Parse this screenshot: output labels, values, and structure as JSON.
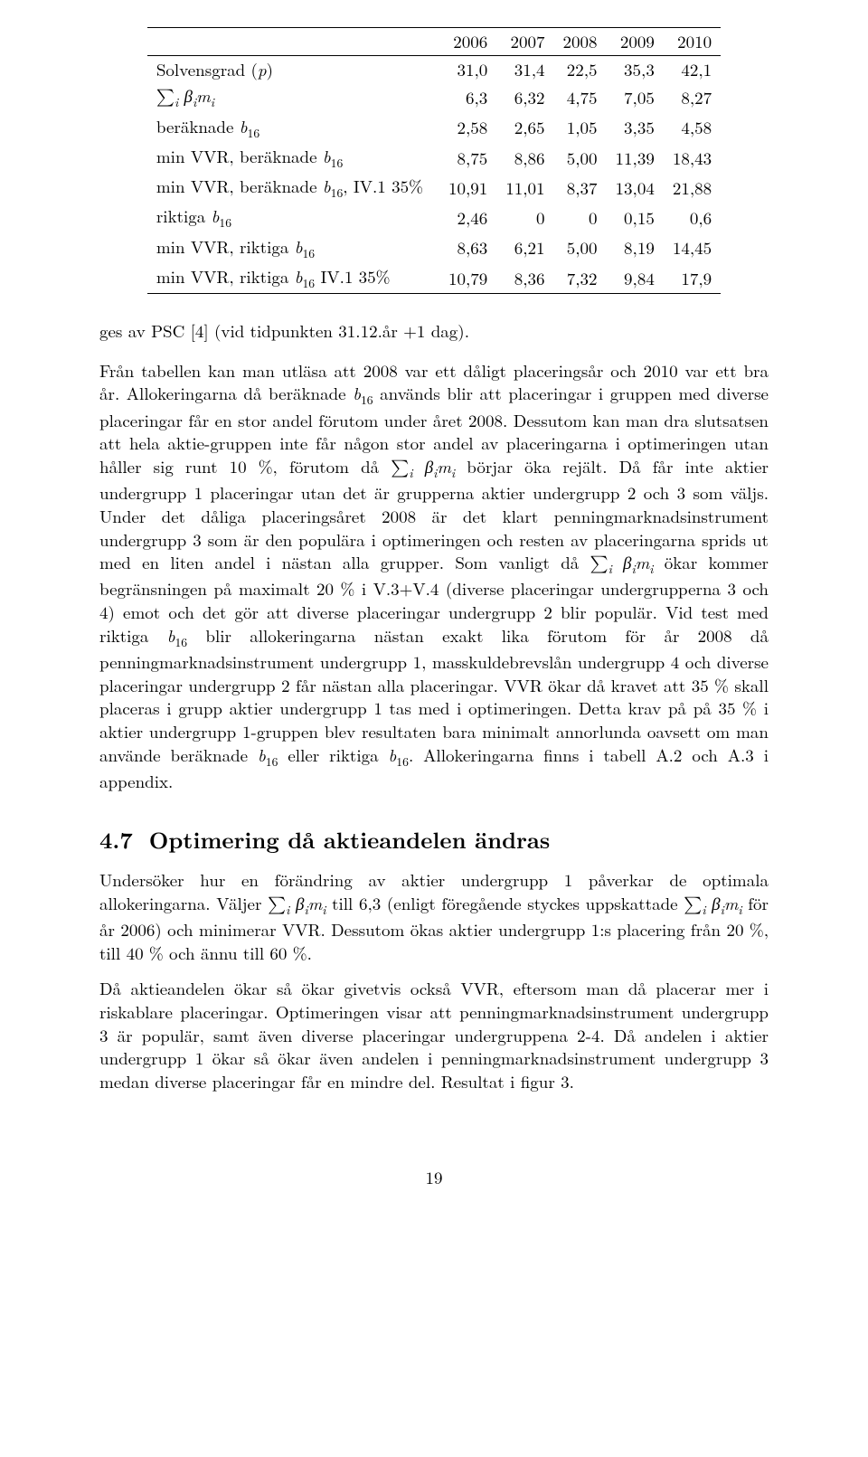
{
  "table": {
    "headers": [
      "",
      "2006",
      "2007",
      "2008",
      "2009",
      "2010"
    ],
    "rows": [
      {
        "label": "Solvensgrad (p)",
        "cells": [
          "31,0",
          "31,4",
          "22,5",
          "35,3",
          "42,1"
        ]
      },
      {
        "label": "∑ᵢ βᵢmᵢ",
        "cells": [
          "6,3",
          "6,32",
          "4,75",
          "7,05",
          "8,27"
        ]
      },
      {
        "label": "beräknade b₁₆",
        "cells": [
          "2,58",
          "2,65",
          "1,05",
          "3,35",
          "4,58"
        ]
      },
      {
        "label": "min VVR, beräknade b₁₆",
        "cells": [
          "8,75",
          "8,86",
          "5,00",
          "11,39",
          "18,43"
        ]
      },
      {
        "label": "min VVR, beräknade b₁₆, IV.1 35%",
        "cells": [
          "10,91",
          "11,01",
          "8,37",
          "13,04",
          "21,88"
        ]
      },
      {
        "label": "riktiga b₁₆",
        "cells": [
          "2,46",
          "0",
          "0",
          "0,15",
          "0,6"
        ]
      },
      {
        "label": "min VVR, riktiga b₁₆",
        "cells": [
          "8,63",
          "6,21",
          "5,00",
          "8,19",
          "14,45"
        ]
      },
      {
        "label": "min VVR, riktiga b₁₆ IV.1 35%",
        "cells": [
          "10,79",
          "8,36",
          "7,32",
          "9,84",
          "17,9"
        ]
      }
    ]
  },
  "para_ges": "ges av PSC [4] (vid tidpunkten 31.12.år +1 dag).",
  "para_main": "Från tabellen kan man utläsa att 2008 var ett dåligt placeringsår och 2010 var ett bra år. Allokeringarna då beräknade b₁₆ används blir att placeringar i gruppen med diverse placeringar får en stor andel förutom under året 2008. Dessutom kan man dra slutsatsen att hela aktie-gruppen inte får någon stor andel av placeringarna i optimeringen utan håller sig runt 10 %, förutom då ∑ᵢ βᵢmᵢ börjar öka rejält. Då får inte aktier undergrupp 1 placeringar utan det är grupperna aktier undergrupp 2 och 3 som väljs. Under det dåliga placeringsåret 2008 är det klart penningmarknadsinstrument undergrupp 3 som är den populära i optimeringen och resten av placeringarna sprids ut med en liten andel i nästan alla grupper. Som vanligt då ∑ᵢ βᵢmᵢ ökar kommer begränsningen på maximalt 20 % i V.3+V.4 (diverse placeringar undergrupperna 3 och 4) emot och det gör att diverse placeringar undergrupp 2 blir populär. Vid test med riktiga b₁₆ blir allokeringarna nästan exakt lika förutom för år 2008 då penningmarknadsinstrument undergrupp 1, masskuldebrevslån undergrupp 4 och diverse placeringar undergrupp 2 får nästan alla placeringar. VVR ökar då kravet att 35 % skall placeras i grupp aktier undergrupp 1 tas med i optimeringen. Detta krav på på 35 % i aktier undergrupp 1-gruppen blev resultaten bara minimalt annorlunda oavsett om man använde beräknade b₁₆ eller riktiga b₁₆. Allokeringarna finns i tabell A.2 och A.3 i appendix.",
  "section": {
    "num": "4.7",
    "title": "Optimering då aktieandelen ändras"
  },
  "para_47a": "Undersöker hur en förändring av aktier undergrupp 1 påverkar de optimala allokeringarna. Väljer ∑ᵢ βᵢmᵢ till 6,3 (enligt föregående styckes uppskattade ∑ᵢ βᵢmᵢ för år 2006) och minimerar VVR. Dessutom ökas aktier undergrupp 1:s placering från 20 %, till 40 % och ännu till 60 %.",
  "para_47b": "Då aktieandelen ökar så ökar givetvis också VVR, eftersom man då placerar mer i riskablare placeringar. Optimeringen visar att penningmarknadsinstrument undergrupp 3 är populär, samt även diverse placeringar undergruppena 2-4. Då andelen i aktier undergrupp 1 ökar så ökar även andelen i penningmarknadsinstrument undergrupp 3 medan diverse placeringar får en mindre del. Resultat i figur 3.",
  "page_number": "19"
}
